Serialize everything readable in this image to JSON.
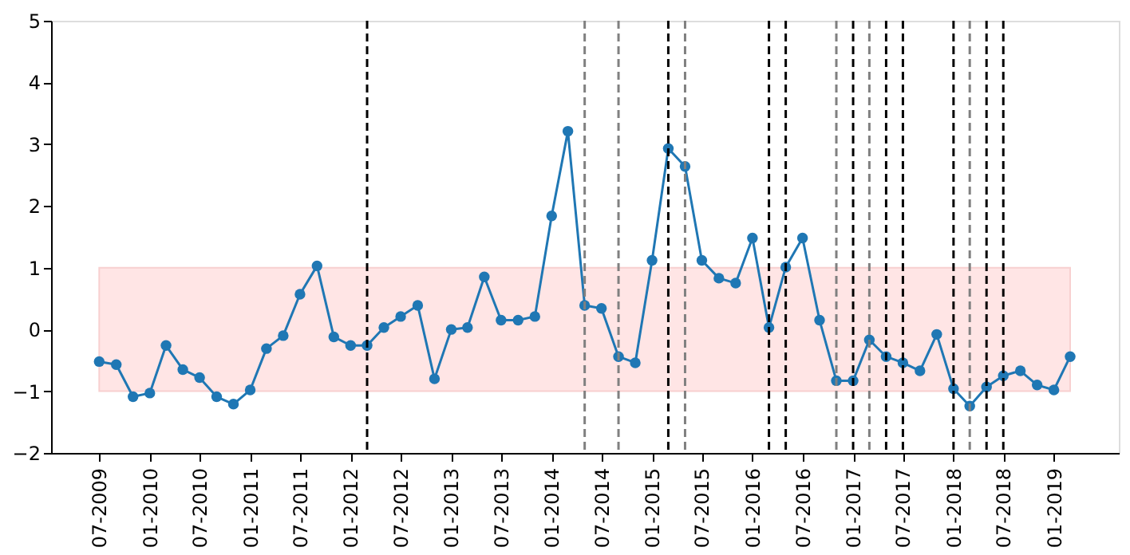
{
  "chart_data": {
    "type": "line",
    "x": [
      "2009-07",
      "2009-09",
      "2009-11",
      "2010-01",
      "2010-03",
      "2010-05",
      "2010-07",
      "2010-09",
      "2010-11",
      "2011-01",
      "2011-03",
      "2011-05",
      "2011-07",
      "2011-09",
      "2011-11",
      "2012-01",
      "2012-03",
      "2012-05",
      "2012-07",
      "2012-09",
      "2012-11",
      "2013-01",
      "2013-03",
      "2013-05",
      "2013-07",
      "2013-09",
      "2013-11",
      "2014-01",
      "2014-03",
      "2014-05",
      "2014-07",
      "2014-09",
      "2014-11",
      "2015-01",
      "2015-03",
      "2015-05",
      "2015-07",
      "2015-09",
      "2015-11",
      "2016-01",
      "2016-03",
      "2016-05",
      "2016-07",
      "2016-09",
      "2016-11",
      "2017-01",
      "2017-03",
      "2017-05",
      "2017-07",
      "2017-09",
      "2017-11",
      "2018-01",
      "2018-03",
      "2018-05",
      "2018-07",
      "2018-09",
      "2018-11",
      "2019-01",
      "2019-03"
    ],
    "series": [
      {
        "color": "#1f77b4",
        "values": [
          -0.52,
          -0.57,
          -1.09,
          -1.03,
          -0.26,
          -0.65,
          -0.78,
          -1.09,
          -1.21,
          -0.98,
          -0.31,
          -0.1,
          0.57,
          1.03,
          -0.12,
          -0.26,
          -0.26,
          0.03,
          0.21,
          0.39,
          -0.8,
          0.0,
          0.03,
          0.85,
          0.15,
          0.15,
          0.21,
          1.84,
          3.21,
          0.39,
          0.34,
          -0.44,
          -0.54,
          1.12,
          2.93,
          2.64,
          1.12,
          0.83,
          0.75,
          1.48,
          0.03,
          1.01,
          1.48,
          0.15,
          -0.83,
          -0.83,
          -0.17,
          -0.44,
          -0.54,
          -0.67,
          -0.08,
          -0.96,
          -1.24,
          -0.93,
          -0.75,
          -0.67,
          -0.9,
          -0.98,
          -0.44
        ]
      }
    ],
    "xlim": [
      "2009-01-07",
      "2019-08-25"
    ],
    "xticks": [
      {
        "value": "2009-07",
        "label": "07-2009"
      },
      {
        "value": "2010-01",
        "label": "01-2010"
      },
      {
        "value": "2010-07",
        "label": "07-2010"
      },
      {
        "value": "2011-01",
        "label": "01-2011"
      },
      {
        "value": "2011-07",
        "label": "07-2011"
      },
      {
        "value": "2012-01",
        "label": "01-2012"
      },
      {
        "value": "2012-07",
        "label": "07-2012"
      },
      {
        "value": "2013-01",
        "label": "01-2013"
      },
      {
        "value": "2013-07",
        "label": "07-2013"
      },
      {
        "value": "2014-01",
        "label": "01-2014"
      },
      {
        "value": "2014-07",
        "label": "07-2014"
      },
      {
        "value": "2015-01",
        "label": "01-2015"
      },
      {
        "value": "2015-07",
        "label": "07-2015"
      },
      {
        "value": "2016-01",
        "label": "01-2016"
      },
      {
        "value": "2016-07",
        "label": "07-2016"
      },
      {
        "value": "2017-01",
        "label": "01-2017"
      },
      {
        "value": "2017-07",
        "label": "07-2017"
      },
      {
        "value": "2018-01",
        "label": "01-2018"
      },
      {
        "value": "2018-07",
        "label": "07-2018"
      },
      {
        "value": "2019-01",
        "label": "01-2019"
      }
    ],
    "ylim": [
      -2,
      5
    ],
    "yticks": [
      -2,
      -1,
      0,
      1,
      2,
      3,
      4,
      5
    ],
    "bands": [
      {
        "axis": "y",
        "from": -1,
        "to": 1,
        "color": "#ffe5e5"
      }
    ],
    "ref_lines": [
      {
        "axis": "x",
        "value": "2012-03",
        "color": "#000000",
        "line_style": "dashed"
      },
      {
        "axis": "x",
        "value": "2014-05",
        "color": "#808080",
        "line_style": "dashed"
      },
      {
        "axis": "x",
        "value": "2014-09",
        "color": "#808080",
        "line_style": "dashed"
      },
      {
        "axis": "x",
        "value": "2015-03",
        "color": "#000000",
        "line_style": "dashed"
      },
      {
        "axis": "x",
        "value": "2015-05",
        "color": "#808080",
        "line_style": "dashed"
      },
      {
        "axis": "x",
        "value": "2016-03",
        "color": "#000000",
        "line_style": "dashed"
      },
      {
        "axis": "x",
        "value": "2016-05",
        "color": "#000000",
        "line_style": "dashed"
      },
      {
        "axis": "x",
        "value": "2016-11",
        "color": "#808080",
        "line_style": "dashed"
      },
      {
        "axis": "x",
        "value": "2017-01",
        "color": "#000000",
        "line_style": "dashed"
      },
      {
        "axis": "x",
        "value": "2017-03",
        "color": "#808080",
        "line_style": "dashed"
      },
      {
        "axis": "x",
        "value": "2017-05",
        "color": "#000000",
        "line_style": "dashed"
      },
      {
        "axis": "x",
        "value": "2017-07",
        "color": "#000000",
        "line_style": "dashed"
      },
      {
        "axis": "x",
        "value": "2018-01",
        "color": "#000000",
        "line_style": "dashed"
      },
      {
        "axis": "x",
        "value": "2018-03",
        "color": "#808080",
        "line_style": "dashed"
      },
      {
        "axis": "x",
        "value": "2018-05",
        "color": "#000000",
        "line_style": "dashed"
      },
      {
        "axis": "x",
        "value": "2018-07",
        "color": "#000000",
        "line_style": "dashed"
      }
    ],
    "grid": false,
    "marker": "circle",
    "line_style": "solid"
  }
}
